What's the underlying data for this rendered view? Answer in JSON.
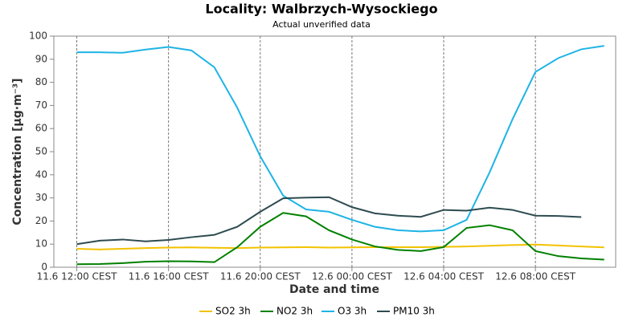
{
  "chart_data": {
    "type": "line",
    "title": "Locality: Walbrzych-Wysockiego",
    "subtitle": "Actual unverified data",
    "x_label": "Date and time",
    "y_label": "Concentration [µg·m⁻³]",
    "x": [
      0,
      1,
      2,
      3,
      4,
      5,
      6,
      7,
      8,
      9,
      10,
      11,
      12,
      13,
      14,
      15,
      16,
      17,
      18,
      19,
      20,
      21,
      22,
      23
    ],
    "xlim": [
      -1,
      23.5
    ],
    "xticks": [
      {
        "value": 0,
        "label": "11.6 12:00 CEST"
      },
      {
        "value": 4,
        "label": "11.6 16:00 CEST"
      },
      {
        "value": 8,
        "label": "11.6 20:00 CEST"
      },
      {
        "value": 12,
        "label": "12.6 00:00 CEST"
      },
      {
        "value": 16,
        "label": "12.6 04:00 CEST"
      },
      {
        "value": 20,
        "label": "12.6 08:00 CEST"
      }
    ],
    "ylim": [
      0,
      100
    ],
    "yticks": [
      0,
      10,
      20,
      30,
      40,
      50,
      60,
      70,
      80,
      90,
      100
    ],
    "grid": "x",
    "legend": "bottom",
    "series": [
      {
        "name": "SO2 3h",
        "color": "#f2c200",
        "values": [
          8,
          7.7,
          8,
          8.3,
          8.5,
          8.6,
          8.4,
          8.3,
          8.5,
          8.6,
          8.7,
          8.5,
          8.6,
          8.7,
          8.7,
          8.7,
          8.8,
          9,
          9.3,
          9.6,
          9.8,
          9.4,
          9,
          8.6
        ]
      },
      {
        "name": "NO2 3h",
        "color": "#008000",
        "values": [
          1.3,
          1.4,
          1.8,
          2.4,
          2.6,
          2.5,
          2.2,
          8.7,
          17.5,
          23.5,
          22,
          16,
          12,
          9,
          7.5,
          7,
          8.7,
          17,
          18.2,
          16,
          7,
          4.8,
          3.8,
          3.3
        ]
      },
      {
        "name": "O3 3h",
        "color": "#1eb4e6",
        "values": [
          93,
          93,
          92.8,
          94.2,
          95.3,
          93.8,
          86.5,
          69,
          48,
          31,
          25,
          24,
          20.5,
          17.5,
          16,
          15.5,
          16,
          20.5,
          41,
          64,
          84.5,
          90.5,
          94.3,
          95.8
        ]
      },
      {
        "name": "PM10 3h",
        "color": "#2d4b50",
        "values": [
          10,
          11.5,
          12,
          11.2,
          11.8,
          13,
          14,
          17.5,
          24,
          29.8,
          30.1,
          30.3,
          26,
          23.3,
          22.3,
          21.8,
          24.8,
          24.5,
          25.8,
          24.8,
          22.3,
          22.2,
          21.7,
          null
        ]
      }
    ]
  }
}
